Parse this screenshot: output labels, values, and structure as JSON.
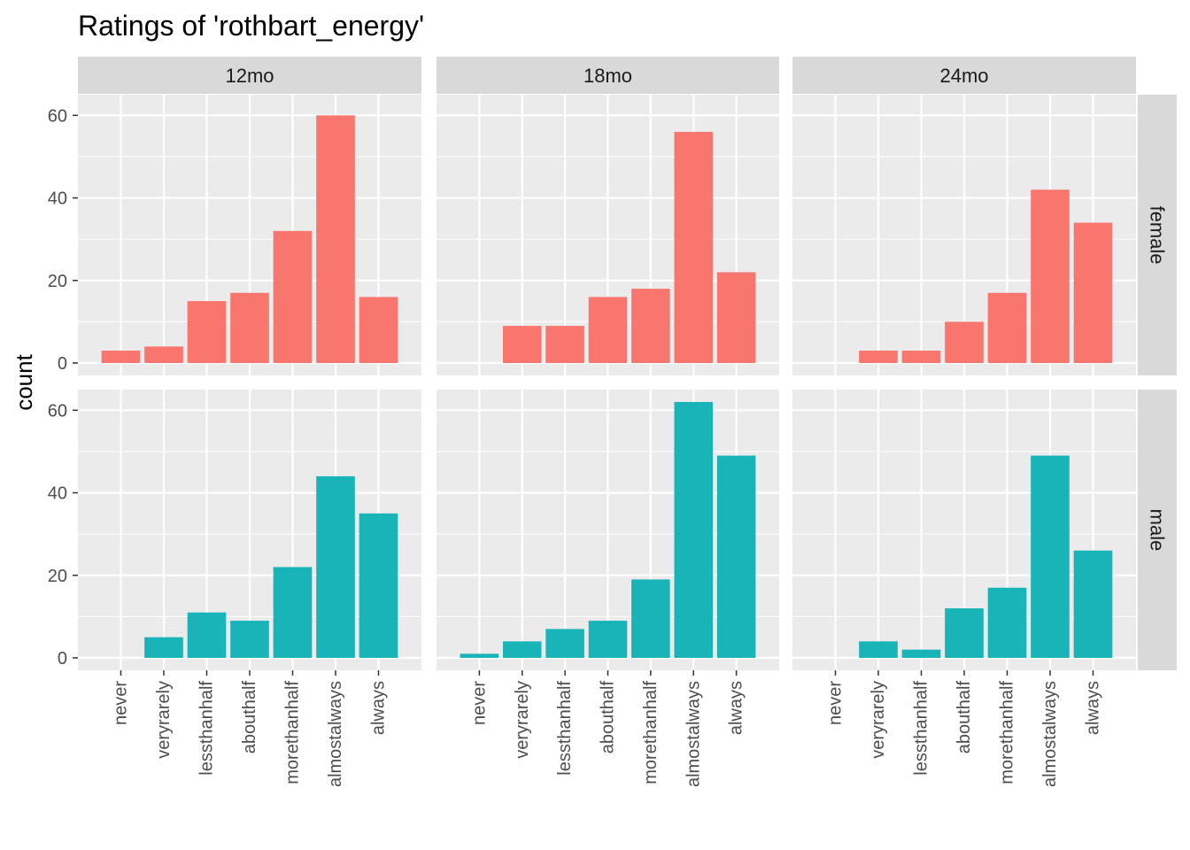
{
  "chart_data": {
    "type": "bar",
    "title": "Ratings of 'rothbart_energy'",
    "xlabel": "",
    "ylabel": "count",
    "categories": [
      "never",
      "veryrarely",
      "lessthanhalf",
      "abouthalf",
      "morethanhalf",
      "almostalways",
      "always"
    ],
    "columns": [
      "12mo",
      "18mo",
      "24mo"
    ],
    "rows": [
      "female",
      "male"
    ],
    "y_ticks": [
      0,
      20,
      40,
      60
    ],
    "ylim": [
      -3,
      65
    ],
    "grid": true,
    "colors": {
      "female": "#F8766D",
      "male": "#19B4B8",
      "panel_bg": "#EBEBEB",
      "strip_bg": "#D9D9D9",
      "grid": "#FFFFFF"
    },
    "panels": [
      {
        "column": "12mo",
        "row": "female",
        "values": [
          3,
          4,
          15,
          17,
          32,
          60,
          16
        ]
      },
      {
        "column": "18mo",
        "row": "female",
        "values": [
          0,
          9,
          9,
          16,
          18,
          56,
          22
        ]
      },
      {
        "column": "24mo",
        "row": "female",
        "values": [
          0,
          3,
          3,
          10,
          17,
          42,
          34
        ]
      },
      {
        "column": "12mo",
        "row": "male",
        "values": [
          0,
          5,
          11,
          9,
          22,
          44,
          35
        ]
      },
      {
        "column": "18mo",
        "row": "male",
        "values": [
          1,
          4,
          7,
          9,
          19,
          62,
          49
        ]
      },
      {
        "column": "24mo",
        "row": "male",
        "values": [
          0,
          4,
          2,
          12,
          17,
          49,
          26
        ]
      }
    ]
  }
}
